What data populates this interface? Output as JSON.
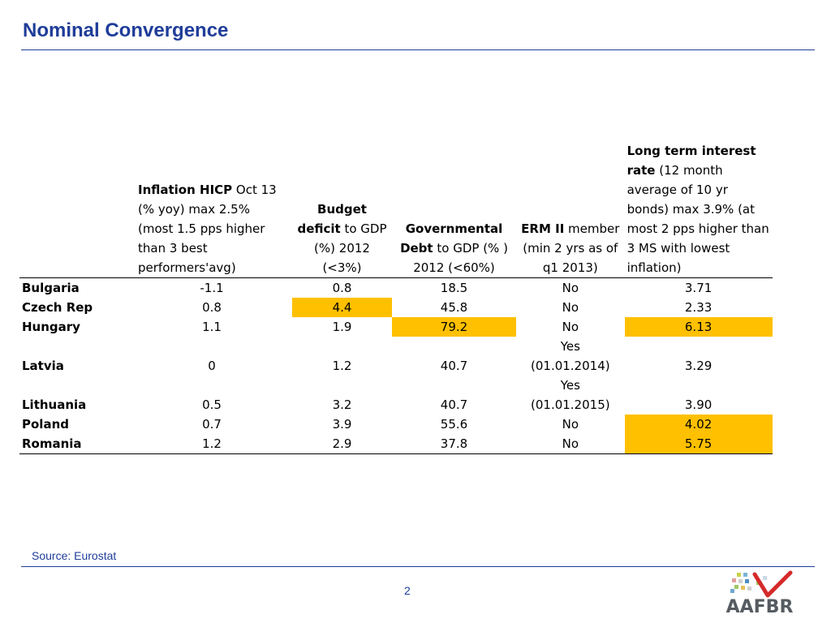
{
  "title": "Nominal Convergence",
  "table": {
    "headers": [
      {
        "bold": "",
        "rest": ""
      },
      {
        "bold": "Inflation HICP",
        "rest": " Oct 13 (% yoy) max 2.5% (most 1.5 pps higher than 3 best performers'avg)"
      },
      {
        "bold": "Budget deficit",
        "rest": " to GDP (%) 2012 (<3%)"
      },
      {
        "bold": "Governmental Debt",
        "rest": " to GDP (% ) 2012 (<60%)"
      },
      {
        "bold": "ERM II",
        "rest": " member (min 2 yrs as of q1 2013)"
      },
      {
        "bold": "Long term interest rate",
        "rest": " (12 month average of 10 yr bonds) max 3.9% (at most 2 pps higher than 3 MS with lowest inflation)"
      }
    ],
    "rows": [
      {
        "country": "Bulgaria",
        "inflation": "-1.1",
        "deficit": "0.8",
        "debt": "18.5",
        "erm": "No",
        "rate": "3.71"
      },
      {
        "country": "Czech Rep",
        "inflation": "0.8",
        "deficit": "4.4",
        "debt": "45.8",
        "erm": "No",
        "rate": "2.33"
      },
      {
        "country": "Hungary",
        "inflation": "1.1",
        "deficit": "1.9",
        "debt": "79.2",
        "erm": "No",
        "rate": "6.13"
      },
      {
        "country": "Latvia",
        "inflation": "0",
        "deficit": "1.2",
        "debt": "40.7",
        "erm": "Yes (01.01.2014)",
        "rate": "3.29"
      },
      {
        "country": "Lithuania",
        "inflation": "0.5",
        "deficit": "3.2",
        "debt": "40.7",
        "erm": "Yes (01.01.2015)",
        "rate": "3.90"
      },
      {
        "country": "Poland",
        "inflation": "0.7",
        "deficit": "3.9",
        "debt": "55.6",
        "erm": "No",
        "rate": "4.02"
      },
      {
        "country": "Romania",
        "inflation": "1.2",
        "deficit": "2.9",
        "debt": "37.8",
        "erm": "No",
        "rate": "5.75"
      }
    ]
  },
  "highlight_color": "#ffc000",
  "accent_color": "#1f3d99",
  "source": "Source: Eurostat",
  "page_number": "2",
  "logo": {
    "text": "AAFBR"
  }
}
